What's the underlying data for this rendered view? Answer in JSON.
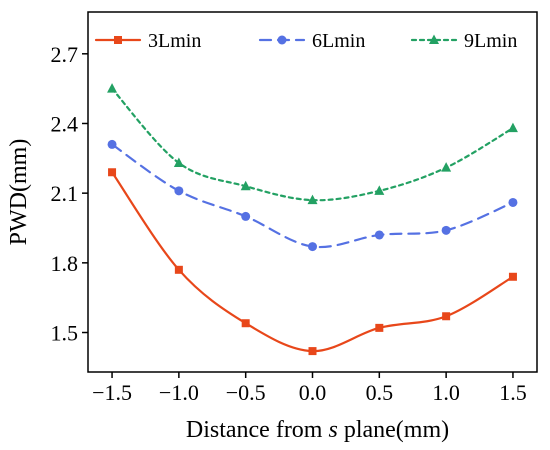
{
  "chart_data": {
    "type": "line",
    "title": "",
    "xlabel_prefix": "Distance from ",
    "xlabel_italic": "s",
    "xlabel_suffix": " plane(mm)",
    "ylabel": "PWD(mm)",
    "x": [
      -1.5,
      -1.0,
      -0.5,
      0.0,
      0.5,
      1.0,
      1.5
    ],
    "xticks": [
      "-1.5",
      "-1.0",
      "-0.5",
      "0.0",
      "0.5",
      "1.0",
      "1.5"
    ],
    "yticks": [
      "1.5",
      "1.8",
      "2.1",
      "2.4",
      "2.7"
    ],
    "xlim": [
      -1.68,
      1.68
    ],
    "ylim": [
      1.33,
      2.88
    ],
    "grid": false,
    "legend_position": "top",
    "series": [
      {
        "name": "3Lmin",
        "color": "#e8471a",
        "marker": "square",
        "dash": "solid",
        "values": [
          2.19,
          1.77,
          1.54,
          1.42,
          1.52,
          1.57,
          1.74
        ]
      },
      {
        "name": "6Lmin",
        "color": "#5571e3",
        "marker": "circle",
        "dash": "dashed",
        "values": [
          2.31,
          2.11,
          2.0,
          1.87,
          1.92,
          1.94,
          2.06
        ]
      },
      {
        "name": "9Lmin",
        "color": "#23a163",
        "marker": "triangle",
        "dash": "dotted",
        "values": [
          2.55,
          2.23,
          2.13,
          2.07,
          2.11,
          2.21,
          2.38
        ]
      }
    ]
  }
}
